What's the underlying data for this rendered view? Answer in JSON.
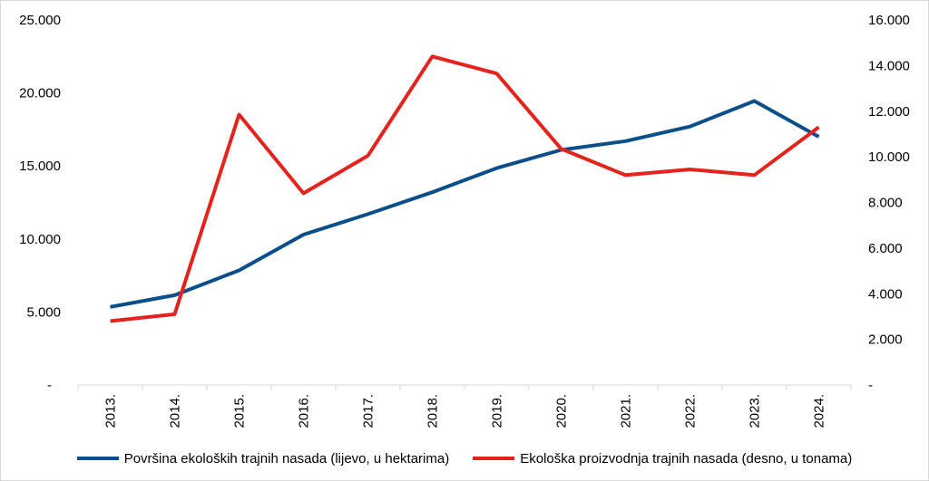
{
  "chart_data": {
    "type": "line",
    "categories": [
      "2013.",
      "2014.",
      "2015.",
      "2016.",
      "2017.",
      "2018.",
      "2019.",
      "2020.",
      "2021.",
      "2022.",
      "2023.",
      "2024."
    ],
    "series": [
      {
        "name": "Površina ekoloških trajnih nasada (lijevo, u hektarima)",
        "axis": "left",
        "color": "#0b4f8a",
        "values": [
          5350,
          6150,
          7850,
          10300,
          11700,
          13200,
          14850,
          16100,
          16700,
          17700,
          19450,
          17000
        ]
      },
      {
        "name": "Ekološka proizvodnja trajnih nasada (desno, u tonama)",
        "axis": "right",
        "color": "#e3231c",
        "values": [
          2800,
          3100,
          11850,
          8400,
          10050,
          14400,
          13650,
          10350,
          9200,
          9450,
          9200,
          11300
        ]
      }
    ],
    "y_left": {
      "ylim": [
        0,
        25000
      ],
      "ticks": [
        0,
        5000,
        10000,
        15000,
        20000,
        25000
      ],
      "tick_labels": [
        "-",
        "5.000",
        "10.000",
        "15.000",
        "20.000",
        "25.000"
      ]
    },
    "y_right": {
      "ylim": [
        0,
        16000
      ],
      "ticks": [
        0,
        2000,
        4000,
        6000,
        8000,
        10000,
        12000,
        14000,
        16000
      ],
      "tick_labels": [
        "-",
        "2.000",
        "4.000",
        "6.000",
        "8.000",
        "10.000",
        "12.000",
        "14.000",
        "16.000"
      ]
    },
    "grid": false,
    "legend_position": "bottom"
  }
}
